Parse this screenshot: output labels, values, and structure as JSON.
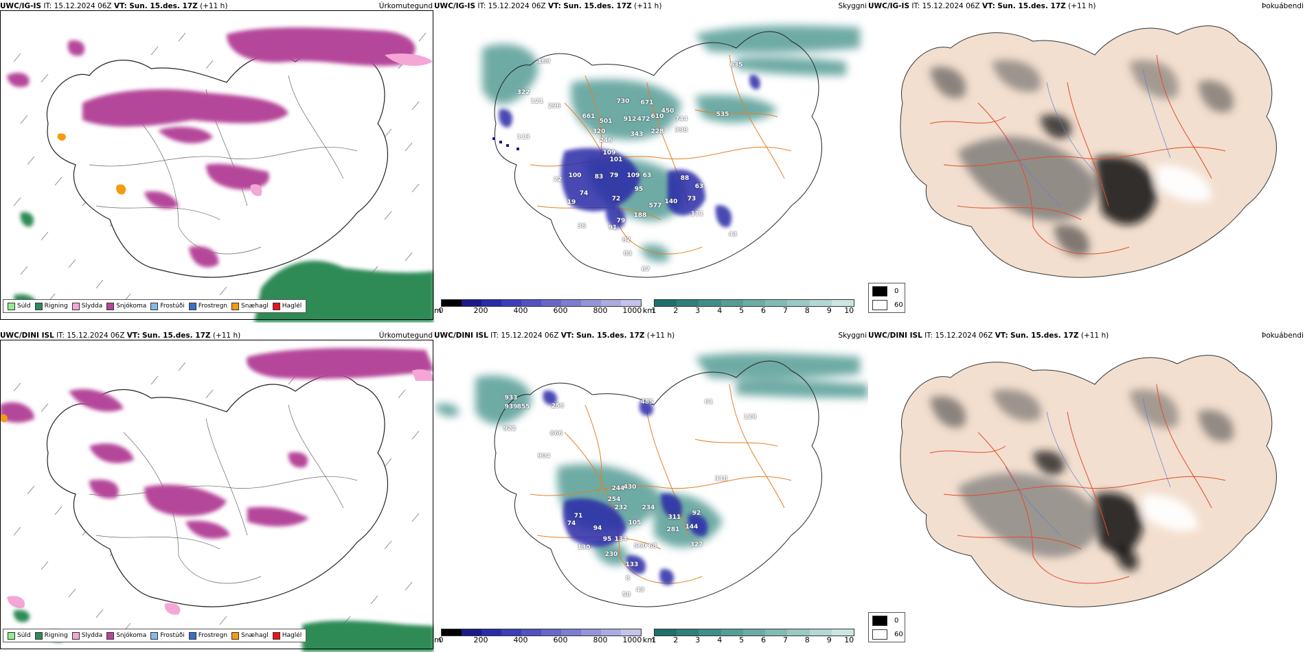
{
  "panels": [
    {
      "model": "UWC/IG-IS",
      "it_label": "IT:",
      "it_value": "15.12.2024 06Z",
      "vt_label": "VT:",
      "vt_value": "Sun. 15.des. 17Z",
      "offset": "(+11 h)",
      "title": "Úrkomutegund"
    },
    {
      "model": "UWC/IG-IS",
      "it_label": "IT:",
      "it_value": "15.12.2024 06Z",
      "vt_label": "VT:",
      "vt_value": "Sun. 15.des. 17Z",
      "offset": "(+11 h)",
      "title": "Skyggni"
    },
    {
      "model": "UWC/IG-IS",
      "it_label": "IT:",
      "it_value": "15.12.2024 06Z",
      "vt_label": "VT:",
      "vt_value": "Sun. 15.des. 17Z",
      "offset": "(+11 h)",
      "title": "Þokuábendi"
    },
    {
      "model": "UWC/DINI ISL",
      "it_label": "IT:",
      "it_value": "15.12.2024 06Z",
      "vt_label": "VT:",
      "vt_value": "Sun. 15.des. 17Z",
      "offset": "(+11 h)",
      "title": "Úrkomutegund"
    },
    {
      "model": "UWC/DINI ISL",
      "it_label": "IT:",
      "it_value": "15.12.2024 06Z",
      "vt_label": "VT:",
      "vt_value": "Sun. 15.des. 17Z",
      "offset": "(+11 h)",
      "title": "Skyggni"
    },
    {
      "model": "UWC/DINI ISL",
      "it_label": "IT:",
      "it_value": "15.12.2024 06Z",
      "vt_label": "VT:",
      "vt_value": "Sun. 15.des. 17Z",
      "offset": "(+11 h)",
      "title": "Þokuábendi"
    }
  ],
  "precip_legend": [
    {
      "label": "Súld",
      "color": "#90ee90"
    },
    {
      "label": "Rigning",
      "color": "#2e8b57"
    },
    {
      "label": "Slydda",
      "color": "#f4a6d7"
    },
    {
      "label": "Snjókoma",
      "color": "#b5479a"
    },
    {
      "label": "Frostúði",
      "color": "#8ab6e8"
    },
    {
      "label": "Frostregn",
      "color": "#3a6fc4"
    },
    {
      "label": "Snæhagl",
      "color": "#f39c12"
    },
    {
      "label": "Haglél",
      "color": "#e8141c"
    }
  ],
  "ceiling_scale": {
    "unit": "m",
    "ticks": [
      "0",
      "200",
      "400",
      "600",
      "800",
      "1000"
    ],
    "colors": [
      "#000000",
      "#1a1a8a",
      "#2b2ba8",
      "#3d3db5",
      "#5252c0",
      "#6767c8",
      "#7d7dcf",
      "#9494d8",
      "#ababe0",
      "#c4c4ea"
    ]
  },
  "visibility_scale": {
    "unit": "km",
    "ticks": [
      "1",
      "2",
      "3",
      "4",
      "5",
      "6",
      "7",
      "8",
      "9",
      "10"
    ],
    "colors": [
      "#1f6f6a",
      "#2f7f7a",
      "#3f8f88",
      "#559e97",
      "#6badA5",
      "#82bbb4",
      "#9ac9c3",
      "#b3d8d3",
      "#cbe6e2"
    ]
  },
  "fog_legend": {
    "entries": [
      {
        "value": "0",
        "color": "#000000"
      },
      {
        "value": "60",
        "color": "#ffffff"
      }
    ]
  },
  "station_values": {
    "top": [
      "169",
      "322",
      "121",
      "296",
      "661",
      "730",
      "671",
      "450",
      "535",
      "501",
      "912",
      "472",
      "610",
      "744",
      "320",
      "343",
      "228",
      "398",
      "113",
      "246",
      "109",
      "101",
      "22",
      "100",
      "83",
      "79",
      "109",
      "63",
      "88",
      "63",
      "73",
      "140",
      "95",
      "74",
      "72",
      "19",
      "577",
      "111",
      "43",
      "36",
      "91",
      "188",
      "79",
      "82",
      "83",
      "67",
      "635"
    ],
    "bottom": [
      "933",
      "939",
      "855",
      "258",
      "485",
      "61",
      "128",
      "922",
      "866",
      "904",
      "244",
      "430",
      "254",
      "232",
      "234",
      "318",
      "311",
      "92",
      "71",
      "74",
      "94",
      "105",
      "144",
      "281",
      "134",
      "560",
      "68",
      "130",
      "95",
      "230",
      "327",
      "43",
      "8",
      "133",
      "58"
    ]
  }
}
